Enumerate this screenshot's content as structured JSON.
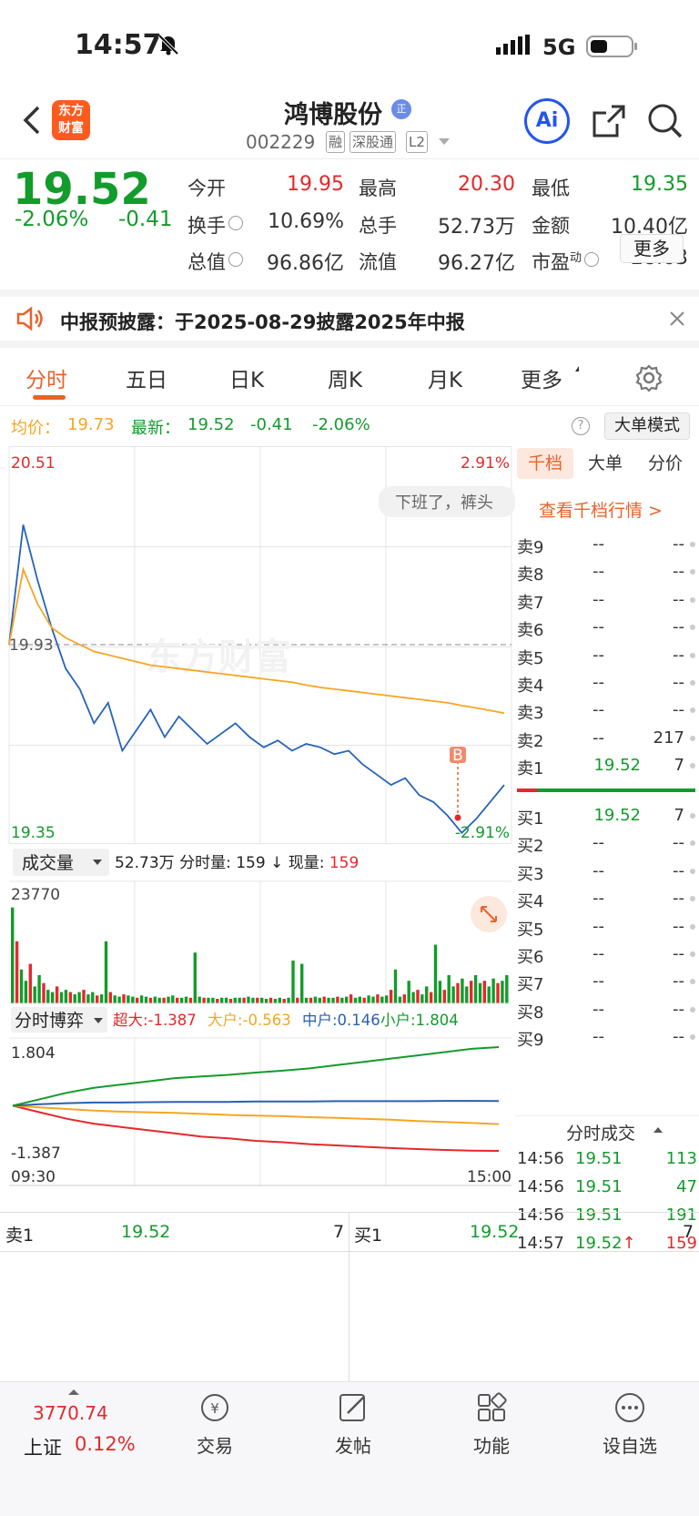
{
  "status": {
    "time": "14:57",
    "network": "5G"
  },
  "header": {
    "back": "back",
    "logo_line1": "东方",
    "logo_line2": "财富",
    "stock_name": "鸿博股份",
    "stock_code": "002229",
    "badges": [
      "融",
      "深股通",
      "L2"
    ],
    "ai_label": "Ai"
  },
  "quote": {
    "price": "19.52",
    "change_pct": "-2.06%",
    "change": "-0.41",
    "fields": [
      {
        "label": "今开",
        "value": "19.95",
        "color": "#e4282b"
      },
      {
        "label": "最高",
        "value": "20.30",
        "color": "#e4282b"
      },
      {
        "label": "最低",
        "value": "19.35",
        "color": "#139b2b"
      },
      {
        "label": "换手",
        "value": "10.69%",
        "color": "#333333"
      },
      {
        "label": "总手",
        "value": "52.73万",
        "color": "#333333"
      },
      {
        "label": "金额",
        "value": "10.40亿",
        "color": "#333333"
      },
      {
        "label": "总值",
        "value": "96.86亿",
        "color": "#333333"
      },
      {
        "label": "流值",
        "value": "96.27亿",
        "color": "#333333"
      },
      {
        "label": "市盈",
        "value": "28.63",
        "color": "#333333",
        "sup": "动"
      }
    ],
    "more_button": "更多"
  },
  "notice": {
    "text": "中报预披露：于2025-08-29披露2025年中报"
  },
  "tabs": [
    {
      "label": "分时",
      "active": true
    },
    {
      "label": "五日"
    },
    {
      "label": "日K"
    },
    {
      "label": "周K"
    },
    {
      "label": "月K"
    },
    {
      "label": "更多"
    }
  ],
  "chart_info": {
    "avg_label": "均价：",
    "avg_value": "19.73",
    "latest_label": "最新：",
    "latest_value": "19.52",
    "latest_change": "-0.41",
    "latest_pct": "-2.06%",
    "big_order_mode": "大单模式"
  },
  "chart_data": {
    "type": "line",
    "title": "",
    "price_axis": {
      "max": "20.51",
      "mid": "19.93",
      "min": "19.35",
      "max_pct": "2.91%",
      "min_pct": "-2.91%"
    },
    "ylim": [
      19.35,
      20.51
    ],
    "time_axis": {
      "start": "09:30",
      "end": "15:00"
    },
    "series": [
      {
        "name": "价格",
        "color": "#2563b8",
        "values": [
          19.93,
          20.28,
          20.12,
          19.98,
          19.86,
          19.8,
          19.7,
          19.76,
          19.62,
          19.68,
          19.74,
          19.66,
          19.72,
          19.68,
          19.64,
          19.67,
          19.7,
          19.66,
          19.63,
          19.65,
          19.62,
          19.64,
          19.63,
          19.61,
          19.62,
          19.58,
          19.55,
          19.52,
          19.54,
          19.49,
          19.47,
          19.43,
          19.38,
          19.42,
          19.47,
          19.52
        ]
      },
      {
        "name": "均价",
        "color": "#f5a623",
        "values": [
          19.93,
          20.15,
          20.05,
          19.98,
          19.95,
          19.93,
          19.91,
          19.9,
          19.89,
          19.88,
          19.87,
          19.865,
          19.86,
          19.855,
          19.85,
          19.845,
          19.84,
          19.835,
          19.83,
          19.825,
          19.82,
          19.812,
          19.805,
          19.8,
          19.795,
          19.79,
          19.785,
          19.78,
          19.775,
          19.77,
          19.765,
          19.76,
          19.752,
          19.745,
          19.738,
          19.73
        ]
      }
    ],
    "marker": {
      "label": "B"
    },
    "watermark": "东方财富"
  },
  "volume": {
    "selector": "成交量",
    "total": "52.73万",
    "tick_label": "分时量:",
    "tick_value": "159",
    "now_label": "现量:",
    "now_value": "159",
    "max": "23770",
    "bars": [
      0.85,
      0.55,
      0.3,
      0.2,
      0.35,
      0.15,
      0.25,
      0.18,
      0.12,
      0.1,
      0.15,
      0.1,
      0.12,
      0.1,
      0.08,
      0.1,
      0.12,
      0.08,
      0.1,
      0.07,
      0.08,
      0.55,
      0.1,
      0.07,
      0.06,
      0.08,
      0.07,
      0.06,
      0.05,
      0.07,
      0.06,
      0.05,
      0.06,
      0.05,
      0.05,
      0.06,
      0.07,
      0.05,
      0.05,
      0.06,
      0.05,
      0.45,
      0.06,
      0.05,
      0.05,
      0.05,
      0.04,
      0.05,
      0.05,
      0.04,
      0.05,
      0.05,
      0.05,
      0.06,
      0.05,
      0.05,
      0.05,
      0.04,
      0.05,
      0.04,
      0.05,
      0.04,
      0.05,
      0.38,
      0.05,
      0.35,
      0.05,
      0.05,
      0.06,
      0.05,
      0.06,
      0.05,
      0.05,
      0.06,
      0.05,
      0.06,
      0.08,
      0.05,
      0.06,
      0.05,
      0.07,
      0.06,
      0.08,
      0.06,
      0.07,
      0.12,
      0.3,
      0.06,
      0.08,
      0.2,
      0.1,
      0.12,
      0.08,
      0.15,
      0.1,
      0.52,
      0.2,
      0.12,
      0.25,
      0.15,
      0.18,
      0.22,
      0.15,
      0.2,
      0.25,
      0.18,
      0.2,
      0.15,
      0.22,
      0.18,
      0.2,
      0.25
    ]
  },
  "game": {
    "selector": "分时博弈",
    "items": [
      {
        "label": "超大:",
        "value": "-1.387",
        "color": "#e4282b"
      },
      {
        "label": "大户:",
        "value": "-0.563",
        "color": "#f5a623"
      },
      {
        "label": "中户:",
        "value": "0.146",
        "color": "#2c5fb0"
      },
      {
        "label": "小户:",
        "value": "1.804",
        "color": "#139b2b"
      }
    ],
    "max": "1.804",
    "min": "-1.387",
    "start": "09:30",
    "end": "15:00",
    "series": [
      {
        "name": "超大",
        "color": "#e4282b",
        "values": [
          0,
          -0.2,
          -0.4,
          -0.55,
          -0.65,
          -0.75,
          -0.85,
          -0.95,
          -1.0,
          -1.08,
          -1.12,
          -1.18,
          -1.22,
          -1.26,
          -1.3,
          -1.33,
          -1.36,
          -1.38,
          -1.387
        ]
      },
      {
        "name": "大户",
        "color": "#f5a623",
        "values": [
          0,
          -0.05,
          -0.1,
          -0.15,
          -0.18,
          -0.2,
          -0.22,
          -0.25,
          -0.28,
          -0.3,
          -0.32,
          -0.35,
          -0.37,
          -0.4,
          -0.43,
          -0.47,
          -0.5,
          -0.53,
          -0.563
        ]
      },
      {
        "name": "中户",
        "color": "#2c5fb0",
        "values": [
          0,
          0.05,
          0.08,
          0.1,
          0.1,
          0.11,
          0.12,
          0.12,
          0.12,
          0.13,
          0.13,
          0.13,
          0.14,
          0.14,
          0.14,
          0.14,
          0.15,
          0.15,
          0.146
        ]
      },
      {
        "name": "小户",
        "color": "#139b2b",
        "values": [
          0,
          0.2,
          0.4,
          0.55,
          0.65,
          0.75,
          0.85,
          0.9,
          0.95,
          1.02,
          1.08,
          1.15,
          1.25,
          1.35,
          1.45,
          1.55,
          1.65,
          1.75,
          1.804
        ]
      }
    ]
  },
  "order_book": {
    "tabs": [
      "千档",
      "大单",
      "分价"
    ],
    "link": "查看千档行情 >",
    "bubble": "下班了，裤头",
    "asks": [
      {
        "label": "卖9",
        "price": "--",
        "vol": "--"
      },
      {
        "label": "卖8",
        "price": "--",
        "vol": "--"
      },
      {
        "label": "卖7",
        "price": "--",
        "vol": "--"
      },
      {
        "label": "卖6",
        "price": "--",
        "vol": "--"
      },
      {
        "label": "卖5",
        "price": "--",
        "vol": "--"
      },
      {
        "label": "卖4",
        "price": "--",
        "vol": "--"
      },
      {
        "label": "卖3",
        "price": "--",
        "vol": "--"
      },
      {
        "label": "卖2",
        "price": "--",
        "vol": "217"
      },
      {
        "label": "卖1",
        "price": "19.52",
        "vol": "7"
      }
    ],
    "bids": [
      {
        "label": "买1",
        "price": "19.52",
        "vol": "7"
      },
      {
        "label": "买2",
        "price": "--",
        "vol": "--"
      },
      {
        "label": "买3",
        "price": "--",
        "vol": "--"
      },
      {
        "label": "买4",
        "price": "--",
        "vol": "--"
      },
      {
        "label": "买5",
        "price": "--",
        "vol": "--"
      },
      {
        "label": "买6",
        "price": "--",
        "vol": "--"
      },
      {
        "label": "买7",
        "price": "--",
        "vol": "--"
      },
      {
        "label": "买8",
        "price": "--",
        "vol": "--"
      },
      {
        "label": "买9",
        "price": "--",
        "vol": "--"
      }
    ],
    "ticks_title": "分时成交",
    "ticks": [
      {
        "time": "14:56",
        "price": "19.51",
        "vol": "113",
        "arrow": ""
      },
      {
        "time": "14:56",
        "price": "19.51",
        "vol": "47",
        "arrow": ""
      },
      {
        "time": "14:56",
        "price": "19.51",
        "vol": "191",
        "arrow": ""
      },
      {
        "time": "14:57",
        "price": "19.52",
        "vol": "159",
        "arrow": "↑"
      }
    ]
  },
  "bottom_quote": {
    "sell_label": "卖1",
    "sell_price": "19.52",
    "sell_vol": "7",
    "buy_label": "买1",
    "buy_price": "19.52",
    "buy_vol": "7"
  },
  "bottom_bar": {
    "index_value": "3770.74",
    "index_name": "上证",
    "index_pct": "0.12%",
    "items": [
      {
        "label": "交易",
        "icon": "trade-icon"
      },
      {
        "label": "发帖",
        "icon": "post-icon"
      },
      {
        "label": "功能",
        "icon": "apps-icon"
      },
      {
        "label": "设自选",
        "icon": "more-icon"
      }
    ]
  }
}
